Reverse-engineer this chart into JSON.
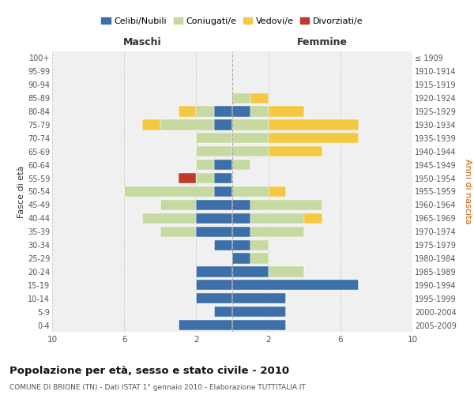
{
  "age_groups": [
    "0-4",
    "5-9",
    "10-14",
    "15-19",
    "20-24",
    "25-29",
    "30-34",
    "35-39",
    "40-44",
    "45-49",
    "50-54",
    "55-59",
    "60-64",
    "65-69",
    "70-74",
    "75-79",
    "80-84",
    "85-89",
    "90-94",
    "95-99",
    "100+"
  ],
  "birth_years": [
    "2005-2009",
    "2000-2004",
    "1995-1999",
    "1990-1994",
    "1985-1989",
    "1980-1984",
    "1975-1979",
    "1970-1974",
    "1965-1969",
    "1960-1964",
    "1955-1959",
    "1950-1954",
    "1945-1949",
    "1940-1944",
    "1935-1939",
    "1930-1934",
    "1925-1929",
    "1920-1924",
    "1915-1919",
    "1910-1914",
    "≤ 1909"
  ],
  "colors": {
    "celibi": "#3d6fa8",
    "coniugati": "#c5d9a0",
    "vedovi": "#f5c842",
    "divorziati": "#c0392b"
  },
  "maschi": {
    "celibi": [
      3,
      1,
      2,
      2,
      2,
      0,
      1,
      2,
      2,
      2,
      1,
      1,
      1,
      0,
      0,
      1,
      1,
      0,
      0,
      0,
      0
    ],
    "coniugati": [
      0,
      0,
      0,
      0,
      0,
      0,
      0,
      2,
      3,
      2,
      5,
      1,
      1,
      2,
      2,
      3,
      1,
      0,
      0,
      0,
      0
    ],
    "vedovi": [
      0,
      0,
      0,
      0,
      0,
      0,
      0,
      0,
      0,
      0,
      0,
      0,
      0,
      0,
      0,
      1,
      1,
      0,
      0,
      0,
      0
    ],
    "divorziati": [
      0,
      0,
      0,
      0,
      0,
      0,
      0,
      0,
      0,
      0,
      0,
      1,
      0,
      0,
      0,
      0,
      0,
      0,
      0,
      0,
      0
    ]
  },
  "femmine": {
    "celibi": [
      3,
      3,
      3,
      7,
      2,
      1,
      1,
      1,
      1,
      1,
      0,
      0,
      0,
      0,
      0,
      0,
      1,
      0,
      0,
      0,
      0
    ],
    "coniugati": [
      0,
      0,
      0,
      0,
      2,
      1,
      1,
      3,
      3,
      4,
      2,
      0,
      1,
      2,
      2,
      2,
      1,
      1,
      0,
      0,
      0
    ],
    "vedovi": [
      0,
      0,
      0,
      0,
      0,
      0,
      0,
      0,
      1,
      0,
      1,
      0,
      0,
      3,
      5,
      5,
      2,
      1,
      0,
      0,
      0
    ],
    "divorziati": [
      0,
      0,
      0,
      0,
      0,
      0,
      0,
      0,
      0,
      0,
      0,
      0,
      0,
      0,
      0,
      0,
      0,
      0,
      0,
      0,
      0
    ]
  },
  "title": "Popolazione per età, sesso e stato civile - 2010",
  "subtitle": "COMUNE DI BRIONE (TN) - Dati ISTAT 1° gennaio 2010 - Elaborazione TUTTITALIA.IT",
  "xlabel_left": "Maschi",
  "xlabel_right": "Femmine",
  "ylabel_left": "Fasce di età",
  "ylabel_right": "Anni di nascita",
  "legend_labels": [
    "Celibi/Nubili",
    "Coniugati/e",
    "Vedovi/e",
    "Divorziati/e"
  ],
  "xlim": 10,
  "background": "#ffffff",
  "plot_bg": "#f0f0f0"
}
